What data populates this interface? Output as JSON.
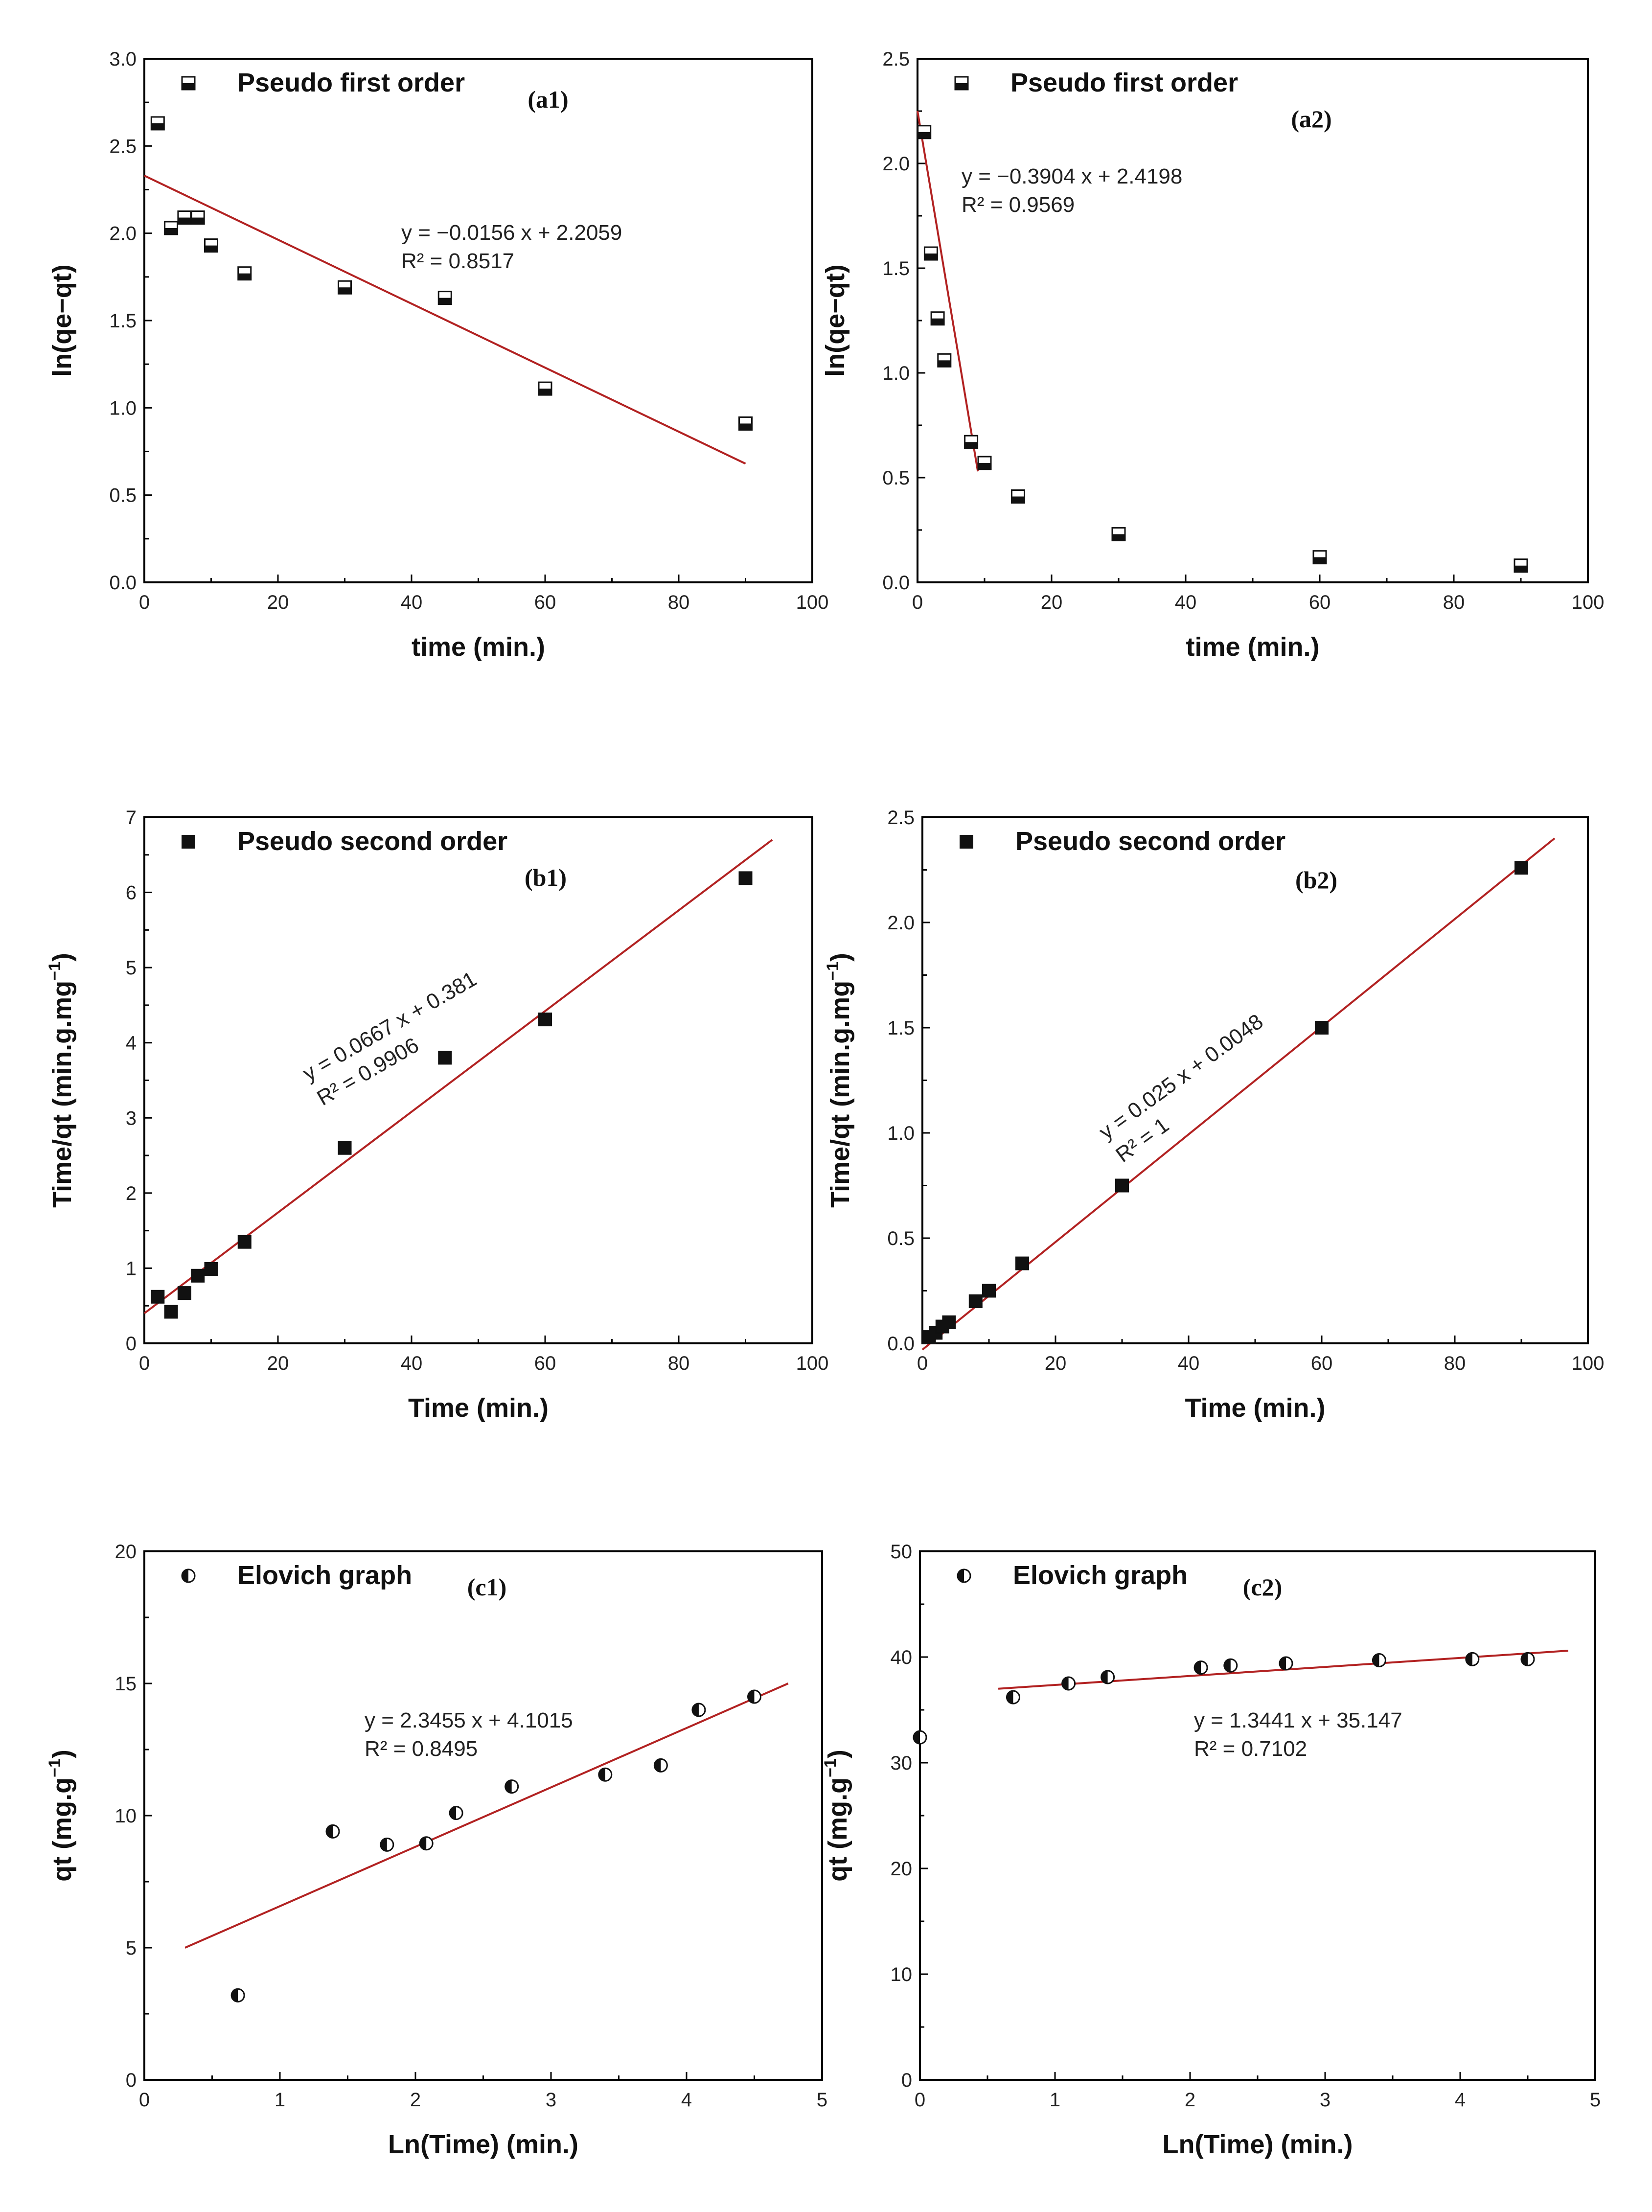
{
  "chart_data": [
    {
      "id": "a1",
      "type": "scatter",
      "panel_label": "(a1)",
      "legend": "Pseudo first order",
      "marker": "square-half",
      "xlabel": "time (min.)",
      "ylabel": "ln(qe−qt)",
      "xlim": [
        0,
        100
      ],
      "ylim": [
        0,
        3.0
      ],
      "xticks": [
        "0",
        "20",
        "40",
        "60",
        "80",
        "100"
      ],
      "yticks": [
        "0.0",
        "0.5",
        "1.0",
        "1.5",
        "2.0",
        "2.5",
        "3.0"
      ],
      "x": [
        2,
        4,
        6,
        8,
        10,
        15,
        30,
        45,
        60,
        90
      ],
      "y": [
        2.63,
        2.03,
        2.09,
        2.09,
        1.93,
        1.77,
        1.69,
        1.63,
        1.11,
        0.91
      ],
      "fit": {
        "slope": -0.0156,
        "intercept": 2.2059,
        "x_range": [
          0,
          90
        ],
        "y_start": 2.33,
        "y_end": 0.68
      },
      "equation": "y = −0.0156 x + 2.2059",
      "r2": "R² = 0.8517"
    },
    {
      "id": "a2",
      "type": "scatter",
      "panel_label": "(a2)",
      "legend": "Pseudo first order",
      "marker": "square-half",
      "xlabel": "time (min.)",
      "ylabel": "ln(qe−qt)",
      "xlim": [
        0,
        100
      ],
      "ylim": [
        0,
        2.5
      ],
      "xticks": [
        "0",
        "20",
        "40",
        "60",
        "80",
        "100"
      ],
      "yticks": [
        "0.0",
        "0.5",
        "1.0",
        "1.5",
        "2.0",
        "2.5"
      ],
      "x": [
        1,
        2,
        3,
        4,
        8,
        10,
        15,
        30,
        60,
        90
      ],
      "y": [
        2.15,
        1.57,
        1.26,
        1.06,
        0.67,
        0.57,
        0.41,
        0.23,
        0.12,
        0.08
      ],
      "fit": {
        "slope": -0.3904,
        "intercept": 2.4198,
        "x_range": [
          0,
          9
        ],
        "y_start": 2.25,
        "y_end": 0.53
      },
      "equation": "y = −0.3904 x + 2.4198",
      "r2": "R² = 0.9569"
    },
    {
      "id": "b1",
      "type": "scatter",
      "panel_label": "(b1)",
      "legend": "Pseudo second order",
      "marker": "square-filled",
      "xlabel": "Time (min.)",
      "ylabel": "Time/qt (min.g.mg",
      "ylabel_sup": "−1",
      "xlim": [
        0,
        100
      ],
      "ylim": [
        0,
        7
      ],
      "xticks": [
        "0",
        "20",
        "40",
        "60",
        "80",
        "100"
      ],
      "yticks": [
        "0",
        "1",
        "2",
        "3",
        "4",
        "5",
        "6",
        "7"
      ],
      "x": [
        2,
        4,
        6,
        8,
        10,
        15,
        30,
        45,
        60,
        90
      ],
      "y": [
        0.62,
        0.42,
        0.67,
        0.9,
        0.99,
        1.35,
        2.6,
        3.8,
        4.31,
        6.19
      ],
      "fit": {
        "slope": 0.0667,
        "intercept": 0.381,
        "x_range": [
          0,
          94
        ],
        "y_start": 0.4,
        "y_end": 6.7
      },
      "equation": "y = 0.0667 x + 0.381",
      "r2": "R² = 0.9906"
    },
    {
      "id": "b2",
      "type": "scatter",
      "panel_label": "(b2)",
      "legend": "Pseudo second order",
      "marker": "square-filled",
      "xlabel": "Time (min.)",
      "ylabel": "Time/qt (min.g.mg",
      "ylabel_sup": "−1",
      "xlim": [
        0,
        100
      ],
      "ylim": [
        0,
        2.5
      ],
      "xticks": [
        "0",
        "20",
        "40",
        "60",
        "80",
        "100"
      ],
      "yticks": [
        "0.0",
        "0.5",
        "1.0",
        "1.5",
        "2.0",
        "2.5"
      ],
      "x": [
        1,
        2,
        3,
        4,
        8,
        10,
        15,
        30,
        60,
        90
      ],
      "y": [
        0.03,
        0.05,
        0.08,
        0.1,
        0.2,
        0.25,
        0.38,
        0.75,
        1.5,
        2.26
      ],
      "fit": {
        "slope": 0.025,
        "intercept": 0.0048,
        "x_range": [
          0,
          95
        ],
        "y_start": -0.03,
        "y_end": 2.4
      },
      "equation": "y = 0.025 x + 0.0048",
      "r2": "R² = 1"
    },
    {
      "id": "c1",
      "type": "scatter",
      "panel_label": "(c1)",
      "legend": "Elovich graph",
      "marker": "circle-half",
      "xlabel": "Ln(Time) (min.)",
      "ylabel": "qt (mg.g",
      "ylabel_sup": "−1",
      "xlim": [
        0,
        5
      ],
      "ylim": [
        0,
        20
      ],
      "xticks": [
        "0",
        "1",
        "2",
        "3",
        "4",
        "5"
      ],
      "yticks": [
        "0",
        "5",
        "10",
        "15",
        "20"
      ],
      "x": [
        0.69,
        1.39,
        1.79,
        2.08,
        2.3,
        2.71,
        3.4,
        3.81,
        4.09,
        4.5
      ],
      "y": [
        3.2,
        9.4,
        8.9,
        8.95,
        10.1,
        11.1,
        11.55,
        11.9,
        14.0,
        14.5
      ],
      "fit": {
        "slope": 2.3455,
        "intercept": 4.1015,
        "x_range": [
          0.3,
          4.75
        ],
        "y_start": 5.0,
        "y_end": 15.0
      },
      "equation": "y = 2.3455 x + 4.1015",
      "r2": "R² = 0.8495"
    },
    {
      "id": "c2",
      "type": "scatter",
      "panel_label": "(c2)",
      "legend": "Elovich graph",
      "marker": "circle-half",
      "xlabel": "Ln(Time) (min.)",
      "ylabel": "qt (mg.g",
      "ylabel_sup": "−1",
      "xlim": [
        0,
        5
      ],
      "ylim": [
        0,
        50
      ],
      "xticks": [
        "0",
        "1",
        "2",
        "3",
        "4",
        "5"
      ],
      "yticks": [
        "0",
        "10",
        "20",
        "30",
        "40",
        "50"
      ],
      "x": [
        0.0,
        0.69,
        1.1,
        1.39,
        2.08,
        2.3,
        2.71,
        3.4,
        4.09,
        4.5
      ],
      "y": [
        32.4,
        36.2,
        37.5,
        38.1,
        39.0,
        39.2,
        39.4,
        39.7,
        39.8,
        39.8
      ],
      "fit": {
        "slope": 1.3441,
        "intercept": 35.147,
        "x_range": [
          0.58,
          4.8
        ],
        "y_start": 37.0,
        "y_end": 40.6
      },
      "equation": "y = 1.3441 x + 35.147",
      "r2": "R² = 0.7102"
    }
  ]
}
